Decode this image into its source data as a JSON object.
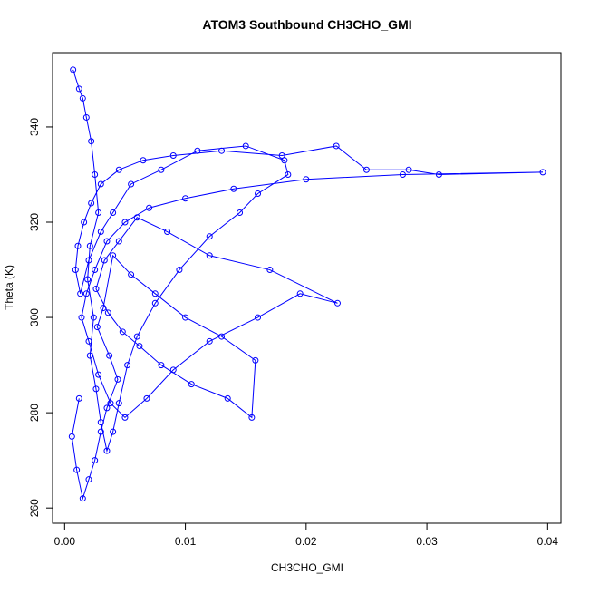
{
  "chart_data": {
    "type": "scatter",
    "connected": true,
    "title": "ATOM3 Southbound CH3CHO_GMI",
    "xlabel": "CH3CHO_GMI",
    "ylabel": "Theta (K)",
    "color": "#0000ff",
    "x": [
      0.0007,
      0.0012,
      0.0015,
      0.0018,
      0.0022,
      0.0025,
      0.0028,
      0.0021,
      0.0019,
      0.0024,
      0.0021,
      0.0026,
      0.003,
      0.0035,
      0.004,
      0.0045,
      0.0052,
      0.006,
      0.0075,
      0.0095,
      0.012,
      0.0145,
      0.016,
      0.0185,
      0.0182,
      0.015,
      0.011,
      0.008,
      0.0055,
      0.004,
      0.003,
      0.002,
      0.0013,
      0.0009,
      0.0011,
      0.0016,
      0.0022,
      0.003,
      0.0045,
      0.0065,
      0.009,
      0.013,
      0.018,
      0.0225,
      0.025,
      0.0285,
      0.031,
      0.0396,
      0.028,
      0.02,
      0.014,
      0.01,
      0.007,
      0.005,
      0.0035,
      0.0025,
      0.0018,
      0.0014,
      0.002,
      0.0028,
      0.0038,
      0.005,
      0.0068,
      0.009,
      0.012,
      0.016,
      0.0195,
      0.0226,
      0.017,
      0.012,
      0.0085,
      0.006,
      0.0045,
      0.0033,
      0.0026,
      0.0036,
      0.0048,
      0.0062,
      0.008,
      0.0105,
      0.0135,
      0.0155,
      0.0158,
      0.013,
      0.01,
      0.0075,
      0.0055,
      0.004,
      0.0032,
      0.0027,
      0.0037,
      0.0044,
      0.0035,
      0.003,
      0.0025,
      0.002,
      0.0015,
      0.001,
      0.0006,
      0.0012
    ],
    "values": [
      352,
      348,
      346,
      342,
      337,
      330,
      322,
      315,
      308,
      300,
      292,
      285,
      278,
      272,
      276,
      282,
      290,
      296,
      303,
      310,
      317,
      322,
      326,
      330,
      333,
      336,
      335,
      331,
      328,
      322,
      318,
      312,
      305,
      310,
      315,
      320,
      324,
      328,
      331,
      333,
      334,
      335,
      334,
      336,
      331,
      331,
      330,
      330.5,
      330,
      329,
      327,
      325,
      323,
      320,
      316,
      310,
      305,
      300,
      295,
      288,
      282,
      279,
      283,
      289,
      295,
      300,
      305,
      303,
      310,
      313,
      318,
      321,
      316,
      312,
      306,
      301,
      297,
      294,
      290,
      286,
      283,
      279,
      291,
      296,
      300,
      305,
      309,
      313,
      302,
      298,
      292,
      287,
      281,
      276,
      270,
      266,
      262,
      268,
      275,
      283
    ],
    "xlim": [
      -0.001,
      0.0411
    ],
    "ylim": [
      256.8,
      355.6
    ],
    "xticks": [
      {
        "value": 0,
        "label": "0.00"
      },
      0.01,
      0.02,
      0.03,
      0.04
    ],
    "yticks": [
      260,
      280,
      300,
      320,
      340
    ]
  }
}
